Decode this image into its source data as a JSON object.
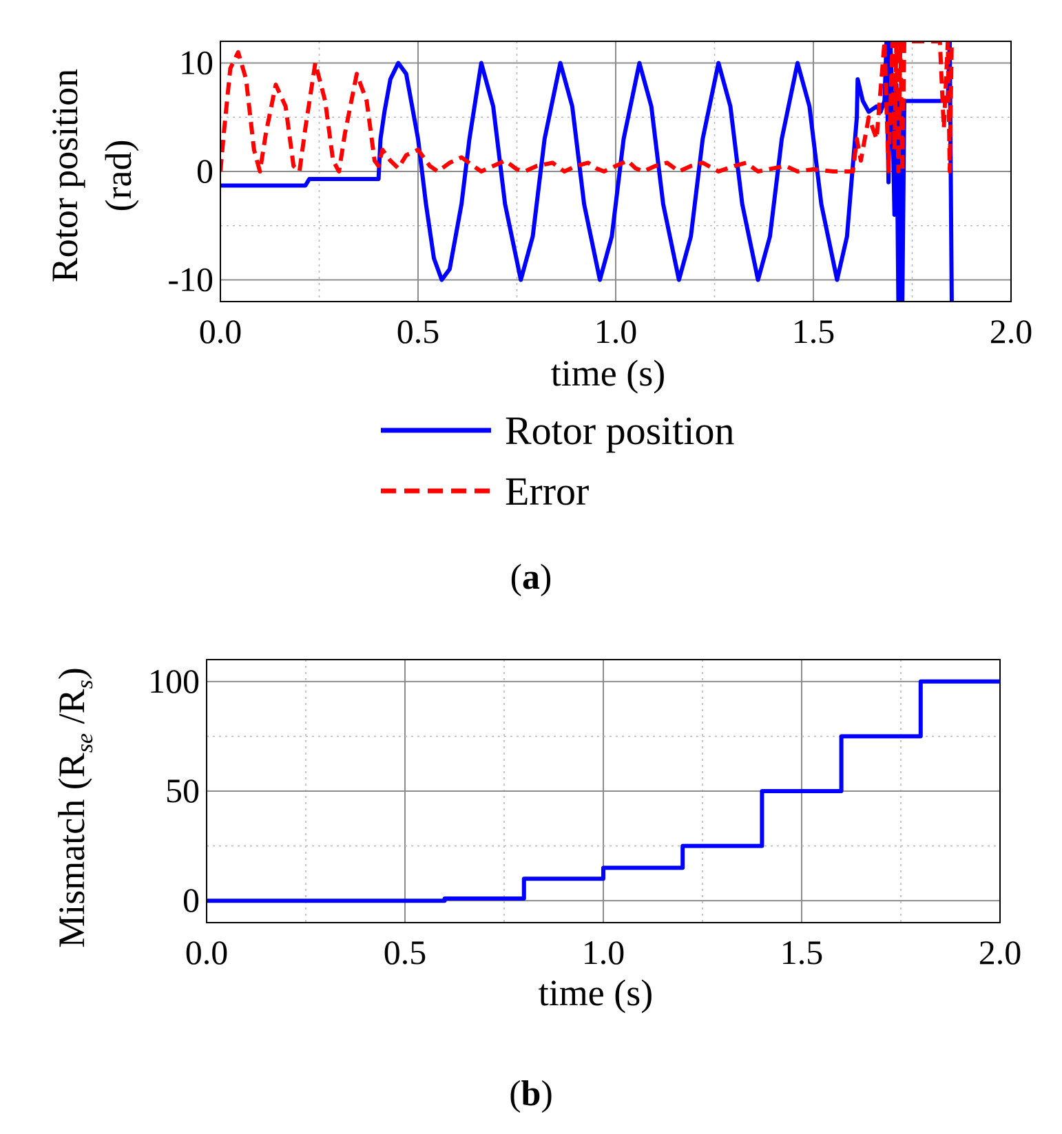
{
  "chart_data": [
    {
      "type": "line",
      "panel_label": "a",
      "xlabel": "time (s)",
      "ylabel_lines": [
        "Rotor position",
        "(rad)"
      ],
      "xlim": [
        0,
        2.0
      ],
      "ylim": [
        -12,
        12
      ],
      "xticks": [
        0.0,
        0.5,
        1.0,
        1.5,
        2.0
      ],
      "xtick_labels": [
        "0.0",
        "0.5",
        "1.0",
        "1.5",
        "2.0"
      ],
      "yticks": [
        -10,
        0,
        10
      ],
      "ytick_labels": [
        "-10",
        "0",
        "10"
      ],
      "grid": true,
      "legend_position": "below",
      "series": [
        {
          "name": "Rotor position",
          "color": "#0000ff",
          "style": "solid",
          "points": [
            [
              0.0,
              -1.3
            ],
            [
              0.215,
              -1.3
            ],
            [
              0.225,
              -0.7
            ],
            [
              0.4,
              -0.7
            ],
            [
              0.405,
              3.0
            ],
            [
              0.415,
              5.5
            ],
            [
              0.43,
              8.5
            ],
            [
              0.45,
              10.0
            ],
            [
              0.47,
              9.0
            ],
            [
              0.5,
              3.0
            ],
            [
              0.52,
              -3.0
            ],
            [
              0.54,
              -8.0
            ],
            [
              0.56,
              -10.0
            ],
            [
              0.58,
              -9.0
            ],
            [
              0.61,
              -3.0
            ],
            [
              0.63,
              3.0
            ],
            [
              0.66,
              10.0
            ],
            [
              0.69,
              6.0
            ],
            [
              0.72,
              -3.0
            ],
            [
              0.76,
              -10.0
            ],
            [
              0.79,
              -6.0
            ],
            [
              0.82,
              3.0
            ],
            [
              0.86,
              10.0
            ],
            [
              0.89,
              6.0
            ],
            [
              0.92,
              -3.0
            ],
            [
              0.96,
              -10.0
            ],
            [
              0.99,
              -6.0
            ],
            [
              1.02,
              3.0
            ],
            [
              1.06,
              10.0
            ],
            [
              1.09,
              6.0
            ],
            [
              1.12,
              -3.0
            ],
            [
              1.16,
              -10.0
            ],
            [
              1.19,
              -6.0
            ],
            [
              1.22,
              3.0
            ],
            [
              1.26,
              10.0
            ],
            [
              1.29,
              6.0
            ],
            [
              1.32,
              -3.0
            ],
            [
              1.36,
              -10.0
            ],
            [
              1.39,
              -6.0
            ],
            [
              1.42,
              3.0
            ],
            [
              1.46,
              10.0
            ],
            [
              1.49,
              6.0
            ],
            [
              1.52,
              -3.0
            ],
            [
              1.56,
              -10.0
            ],
            [
              1.585,
              -6.0
            ],
            [
              1.61,
              5.0
            ],
            [
              1.612,
              8.5
            ],
            [
              1.625,
              6.5
            ],
            [
              1.64,
              5.5
            ],
            [
              1.66,
              6.0
            ],
            [
              1.67,
              5.5
            ],
            [
              1.68,
              6.5
            ],
            [
              1.685,
              12.0
            ],
            [
              1.69,
              -1.0
            ],
            [
              1.695,
              12.0
            ],
            [
              1.7,
              6.0
            ],
            [
              1.705,
              -4.0
            ],
            [
              1.71,
              8.0
            ],
            [
              1.715,
              -12.0
            ],
            [
              1.72,
              6.5
            ],
            [
              1.725,
              -12.0
            ],
            [
              1.73,
              6.5
            ],
            [
              1.84,
              6.5
            ],
            [
              1.845,
              12.0
            ],
            [
              1.85,
              -12.0
            ]
          ]
        },
        {
          "name": "Error",
          "color": "#ff0000",
          "style": "dashed",
          "points": [
            [
              0.0,
              0.0
            ],
            [
              0.01,
              4.0
            ],
            [
              0.025,
              9.5
            ],
            [
              0.045,
              11.0
            ],
            [
              0.065,
              8.5
            ],
            [
              0.085,
              2.0
            ],
            [
              0.1,
              0.0
            ],
            [
              0.115,
              3.5
            ],
            [
              0.14,
              8.0
            ],
            [
              0.165,
              6.0
            ],
            [
              0.185,
              0.5
            ],
            [
              0.2,
              0.0
            ],
            [
              0.215,
              4.0
            ],
            [
              0.24,
              10.0
            ],
            [
              0.265,
              6.5
            ],
            [
              0.285,
              1.0
            ],
            [
              0.3,
              0.0
            ],
            [
              0.315,
              3.5
            ],
            [
              0.345,
              9.0
            ],
            [
              0.37,
              6.5
            ],
            [
              0.39,
              1.0
            ],
            [
              0.4,
              0.5
            ],
            [
              0.41,
              2.0
            ],
            [
              0.43,
              1.0
            ],
            [
              0.45,
              0.3
            ],
            [
              0.47,
              1.5
            ],
            [
              0.5,
              2.0
            ],
            [
              0.53,
              0.5
            ],
            [
              0.55,
              0.0
            ],
            [
              0.58,
              0.8
            ],
            [
              0.61,
              1.3
            ],
            [
              0.64,
              0.5
            ],
            [
              0.66,
              0.0
            ],
            [
              0.69,
              0.5
            ],
            [
              0.72,
              1.0
            ],
            [
              0.75,
              0.2
            ],
            [
              0.77,
              0.0
            ],
            [
              0.8,
              0.5
            ],
            [
              0.84,
              0.8
            ],
            [
              0.87,
              0.0
            ],
            [
              0.9,
              0.5
            ],
            [
              0.93,
              0.8
            ],
            [
              0.95,
              0.3
            ],
            [
              0.97,
              0.0
            ],
            [
              1.0,
              0.5
            ],
            [
              1.03,
              1.0
            ],
            [
              1.05,
              0.3
            ],
            [
              1.07,
              0.0
            ],
            [
              1.1,
              0.5
            ],
            [
              1.13,
              0.8
            ],
            [
              1.16,
              0.0
            ],
            [
              1.19,
              0.5
            ],
            [
              1.22,
              0.8
            ],
            [
              1.26,
              0.0
            ],
            [
              1.3,
              0.5
            ],
            [
              1.33,
              0.8
            ],
            [
              1.36,
              0.0
            ],
            [
              1.4,
              0.3
            ],
            [
              1.43,
              0.5
            ],
            [
              1.46,
              0.0
            ],
            [
              1.5,
              0.2
            ],
            [
              1.55,
              0.0
            ],
            [
              1.6,
              0.0
            ],
            [
              1.61,
              3.0
            ],
            [
              1.62,
              1.0
            ],
            [
              1.64,
              5.0
            ],
            [
              1.66,
              3.0
            ],
            [
              1.68,
              12.0
            ],
            [
              1.69,
              0.0
            ],
            [
              1.7,
              12.0
            ],
            [
              1.705,
              2.0
            ],
            [
              1.71,
              12.0
            ],
            [
              1.715,
              0.0
            ],
            [
              1.72,
              12.0
            ],
            [
              1.725,
              0.0
            ],
            [
              1.73,
              12.0
            ],
            [
              1.82,
              12.0
            ],
            [
              1.83,
              4.0
            ],
            [
              1.84,
              12.0
            ],
            [
              1.845,
              0.0
            ],
            [
              1.85,
              12.0
            ]
          ]
        }
      ]
    },
    {
      "type": "line",
      "panel_label": "b",
      "xlabel": "time (s)",
      "ylabel_text": "Mismatch (R",
      "ylabel_sub1": "se",
      "ylabel_mid": " /R",
      "ylabel_sub2": "s",
      "ylabel_end": ")",
      "xlim": [
        0,
        2.0
      ],
      "ylim": [
        -10,
        110
      ],
      "xticks": [
        0.0,
        0.5,
        1.0,
        1.5,
        2.0
      ],
      "xtick_labels": [
        "0.0",
        "0.5",
        "1.0",
        "1.5",
        "2.0"
      ],
      "yticks": [
        0,
        50,
        100
      ],
      "ytick_labels": [
        "0",
        "50",
        "100"
      ],
      "grid": true,
      "series": [
        {
          "color": "#0000ff",
          "style": "solid",
          "points": [
            [
              0.0,
              0.0
            ],
            [
              0.6,
              0.0
            ],
            [
              0.6,
              1.0
            ],
            [
              0.8,
              1.0
            ],
            [
              0.8,
              10.0
            ],
            [
              1.0,
              10.0
            ],
            [
              1.0,
              15.0
            ],
            [
              1.2,
              15.0
            ],
            [
              1.2,
              25.0
            ],
            [
              1.4,
              25.0
            ],
            [
              1.4,
              50.0
            ],
            [
              1.6,
              50.0
            ],
            [
              1.6,
              75.0
            ],
            [
              1.8,
              75.0
            ],
            [
              1.8,
              100.0
            ],
            [
              2.0,
              100.0
            ]
          ]
        }
      ]
    }
  ]
}
